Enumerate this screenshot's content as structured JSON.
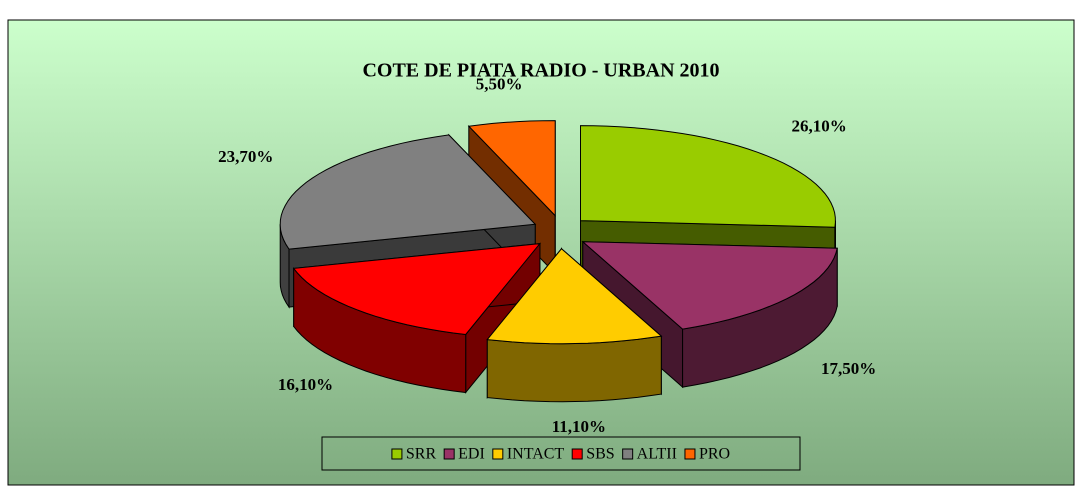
{
  "chart_data": {
    "type": "pie",
    "title": "COTE DE PIATA RADIO - URBAN 2010",
    "categories": [
      "SRR",
      "EDI",
      "INTACT",
      "SBS",
      "ALTII",
      "PRO"
    ],
    "values": [
      26.1,
      17.5,
      11.1,
      16.1,
      23.7,
      5.5
    ],
    "value_labels": [
      "26,10%",
      "17,50%",
      "11,10%",
      "16,10%",
      "23,70%",
      "5,50%"
    ],
    "colors": [
      "#99cc00",
      "#993366",
      "#ffcc00",
      "#ff0000",
      "#808080",
      "#ff6600"
    ],
    "legend": "bottom"
  }
}
